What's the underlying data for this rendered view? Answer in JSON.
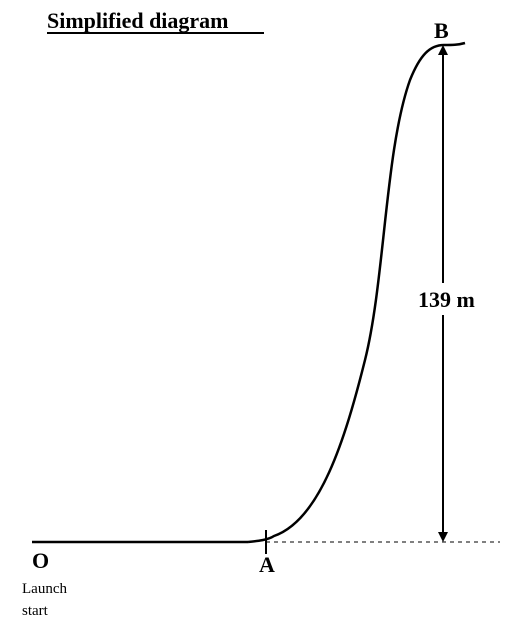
{
  "diagram": {
    "title": "Simplified diagram",
    "points": {
      "origin": "O",
      "a": "A",
      "b": "B"
    },
    "origin_caption_line1": "Launch",
    "origin_caption_line2": "start",
    "height_label": "139 m"
  }
}
